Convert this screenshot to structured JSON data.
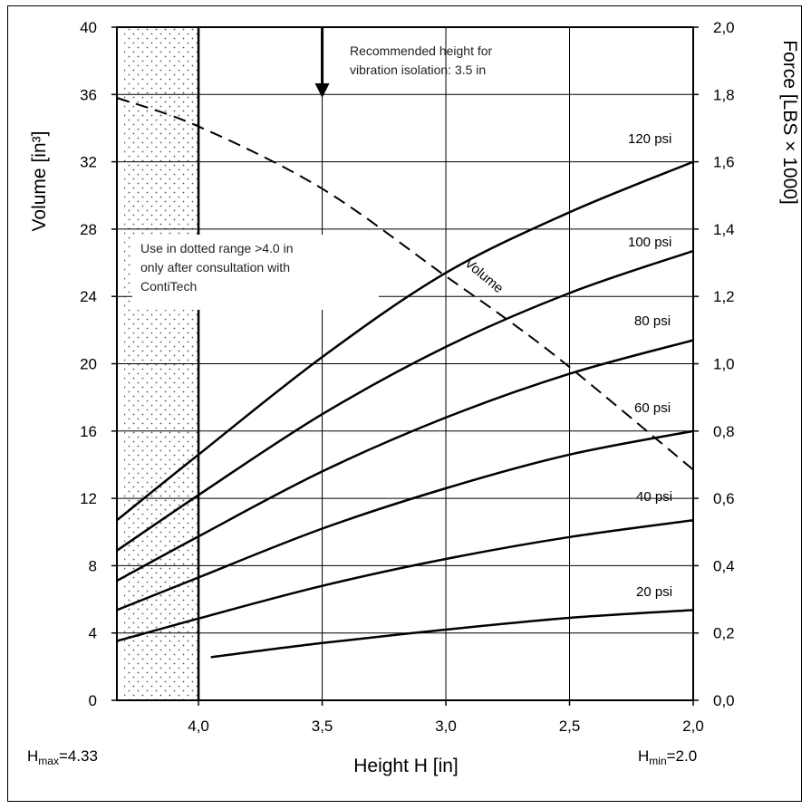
{
  "chart_data": {
    "type": "line",
    "xlabel": "Height H [in]",
    "ylabel_left": "Volume [in³]",
    "ylabel_right": "Force [LBS × 1000]",
    "x_reversed": true,
    "xlim": [
      4.33,
      2.0
    ],
    "ylim_left": [
      0,
      40
    ],
    "ylim_right": [
      0,
      2.0
    ],
    "x_ticks": [
      "4,0",
      "3,5",
      "3,0",
      "2,5",
      "2,0"
    ],
    "y_ticks_left": [
      "0",
      "4",
      "8",
      "12",
      "16",
      "20",
      "24",
      "28",
      "32",
      "36",
      "40"
    ],
    "y_ticks_right": [
      "0,0",
      "0,2",
      "0,4",
      "0,6",
      "0,8",
      "1,0",
      "1,2",
      "1,4",
      "1,6",
      "1,8",
      "2,0"
    ],
    "grid": true,
    "hmax_label": {
      "main": "H",
      "sub": "max",
      "rest": "=4.33"
    },
    "hmin_label": {
      "main": "H",
      "sub": "min",
      "rest": "=2.0"
    },
    "dotted_range": {
      "from": 4.33,
      "to": 4.0
    },
    "series": [
      {
        "name": "120 psi",
        "axis": "right",
        "x": [
          4.33,
          4.0,
          3.5,
          3.0,
          2.5,
          2.0
        ],
        "y": [
          0.535,
          0.73,
          1.02,
          1.27,
          1.45,
          1.6
        ]
      },
      {
        "name": "100 psi",
        "axis": "right",
        "x": [
          4.33,
          4.0,
          3.5,
          3.0,
          2.5,
          2.0
        ],
        "y": [
          0.445,
          0.61,
          0.85,
          1.05,
          1.21,
          1.335
        ]
      },
      {
        "name": "80 psi",
        "axis": "right",
        "x": [
          4.33,
          4.0,
          3.5,
          3.0,
          2.5,
          2.0
        ],
        "y": [
          0.355,
          0.487,
          0.68,
          0.84,
          0.97,
          1.07
        ]
      },
      {
        "name": "60 psi",
        "axis": "right",
        "x": [
          4.33,
          4.0,
          3.5,
          3.0,
          2.5,
          2.0
        ],
        "y": [
          0.268,
          0.365,
          0.51,
          0.63,
          0.73,
          0.8
        ]
      },
      {
        "name": "40 psi",
        "axis": "right",
        "x": [
          4.33,
          4.0,
          3.5,
          3.0,
          2.5,
          2.0
        ],
        "y": [
          0.176,
          0.243,
          0.34,
          0.42,
          0.485,
          0.535
        ]
      },
      {
        "name": "20 psi",
        "axis": "right",
        "x": [
          3.95,
          3.5,
          3.0,
          2.5,
          2.0
        ],
        "y": [
          0.128,
          0.17,
          0.21,
          0.245,
          0.268
        ]
      },
      {
        "name": "Volume",
        "axis": "left",
        "dashed": true,
        "x": [
          4.33,
          4.0,
          3.5,
          3.0,
          2.75,
          2.5,
          2.0
        ],
        "y": [
          35.8,
          34.1,
          30.4,
          25.2,
          22.6,
          19.8,
          13.7
        ]
      }
    ],
    "recommended": {
      "x": 3.5,
      "text_line1": "Recommended height for",
      "text_line2": "vibration isolation: 3.5 in"
    },
    "note": {
      "line1": "Use in dotted range >4.0 in",
      "line2": "only after consultation with",
      "line3": "ContiTech"
    }
  }
}
